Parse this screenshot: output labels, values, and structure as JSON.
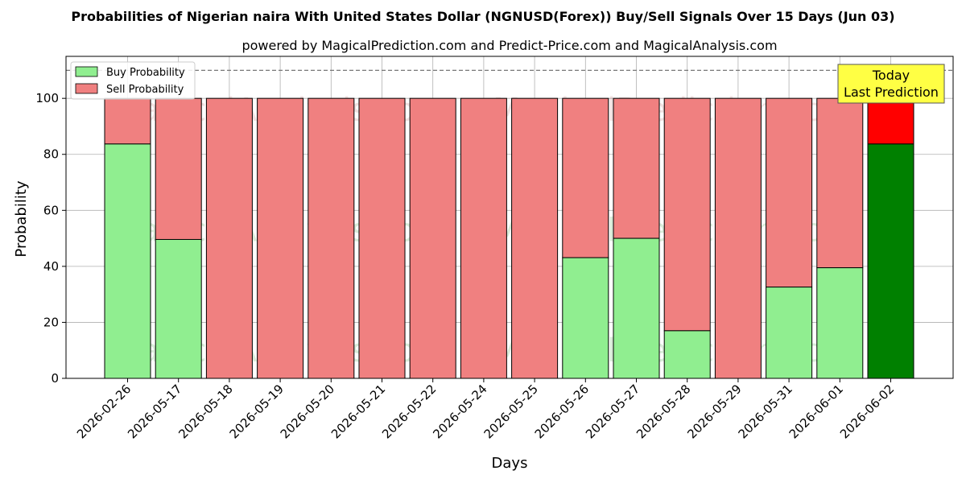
{
  "title": "Probabilities of Nigerian naira With United States Dollar (NGNUSD(Forex)) Buy/Sell Signals Over 15 Days (Jun 03)",
  "subtitle": "powered by MagicalPrediction.com and Predict-Price.com and MagicalAnalysis.com",
  "watermarks": [
    "MagicalAnalysis.com",
    "MagicalPrediction.com"
  ],
  "today_label": [
    "Today",
    "Last Prediction"
  ],
  "colors": {
    "buy": "#90ee90",
    "sell": "#f08080",
    "buy_today": "#008000",
    "sell_today": "#ff0000",
    "today_box": "#ffff44"
  },
  "chart_data": {
    "type": "bar",
    "stacked": true,
    "xlabel": "Days",
    "ylabel": "Probability",
    "ylim": [
      0,
      115
    ],
    "yticks": [
      0,
      20,
      40,
      60,
      80,
      100
    ],
    "reference_line": 110,
    "grid": true,
    "legend_position": "top-left",
    "categories": [
      "2026-02-26",
      "2026-05-17",
      "2026-05-18",
      "2026-05-19",
      "2026-05-20",
      "2026-05-21",
      "2026-05-22",
      "2026-05-24",
      "2026-05-25",
      "2026-05-26",
      "2026-05-27",
      "2026-05-28",
      "2026-05-29",
      "2026-05-31",
      "2026-06-01",
      "2026-06-02"
    ],
    "series": [
      {
        "name": "Buy Probability",
        "values": [
          83.7,
          49.6,
          0,
          0,
          0,
          0,
          0,
          0,
          0,
          43.1,
          50.0,
          17.0,
          0,
          32.6,
          39.5,
          83.7
        ]
      },
      {
        "name": "Sell Probability",
        "values": [
          16.3,
          50.4,
          100,
          100,
          100,
          100,
          100,
          100,
          100,
          56.9,
          50.0,
          83.0,
          100,
          67.4,
          60.5,
          16.3
        ]
      }
    ]
  }
}
